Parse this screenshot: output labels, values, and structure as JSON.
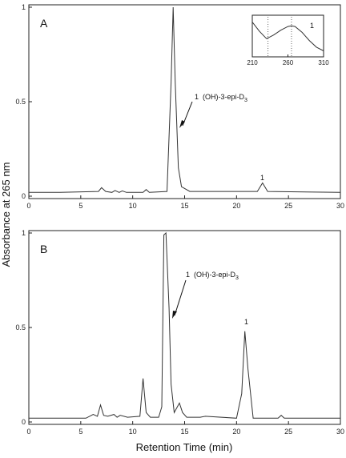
{
  "ylabel": "Absorbance at 265 nm",
  "xlabel": "Retention Time (min)",
  "colors": {
    "trace": "#333333",
    "axis": "#222222"
  },
  "chart_data": [
    {
      "panel": "A",
      "type": "line",
      "xlim": [
        0,
        30
      ],
      "ylim": [
        0,
        1
      ],
      "xticks": [
        "0",
        "5",
        "10",
        "15",
        "20",
        "25",
        "30"
      ],
      "yticks": [
        "0",
        "0.5",
        "1"
      ],
      "grid": false,
      "series": [
        {
          "x": [
            0,
            3,
            6.7,
            7.0,
            7.4,
            8,
            8.3,
            8.7,
            9.0,
            9.4,
            11,
            11.3,
            11.6,
            13.3,
            13.7,
            13.9,
            14.1,
            14.4,
            14.7,
            15.5,
            22,
            22.5,
            23,
            30
          ],
          "y": [
            0.02,
            0.02,
            0.025,
            0.045,
            0.025,
            0.02,
            0.03,
            0.02,
            0.028,
            0.02,
            0.02,
            0.035,
            0.02,
            0.025,
            0.6,
            1.0,
            0.6,
            0.15,
            0.05,
            0.025,
            0.025,
            0.07,
            0.025,
            0.02
          ]
        }
      ],
      "annotations": [
        {
          "label_prefix": "1",
          "label_main": "(OH)-3-epi-D",
          "label_sub": "3",
          "x": 14.5,
          "y": 0.35
        },
        {
          "label": "1",
          "x": 22.5,
          "y": 0.07
        }
      ],
      "inset": {
        "type": "line",
        "xlim": [
          210,
          310
        ],
        "xticks": [
          "210",
          "260",
          "310"
        ],
        "series_label": "1",
        "x": [
          210,
          220,
          230,
          240,
          250,
          260,
          265,
          270,
          280,
          290,
          300,
          310
        ],
        "y": [
          0.9,
          0.65,
          0.45,
          0.55,
          0.68,
          0.78,
          0.8,
          0.78,
          0.62,
          0.4,
          0.22,
          0.12
        ],
        "dotted_x": [
          232,
          265
        ]
      }
    },
    {
      "panel": "B",
      "type": "line",
      "xlim": [
        0,
        30
      ],
      "ylim": [
        0,
        1
      ],
      "xticks": [
        "0",
        "5",
        "10",
        "15",
        "20",
        "25",
        "30"
      ],
      "yticks": [
        "0",
        "0.5",
        "1"
      ],
      "grid": false,
      "series": [
        {
          "x": [
            0,
            5.5,
            6.2,
            6.6,
            6.9,
            7.2,
            7.6,
            8.2,
            8.5,
            8.8,
            9.5,
            10.7,
            11.0,
            11.3,
            11.7,
            12.5,
            12.8,
            13.0,
            13.2,
            13.5,
            13.7,
            14.0,
            14.5,
            14.8,
            15.2,
            16.5,
            17.0,
            20,
            20.5,
            20.8,
            21.1,
            21.6,
            24,
            24.3,
            24.6,
            30
          ],
          "y": [
            0.02,
            0.02,
            0.04,
            0.03,
            0.09,
            0.035,
            0.03,
            0.04,
            0.025,
            0.035,
            0.025,
            0.03,
            0.23,
            0.05,
            0.025,
            0.025,
            0.08,
            0.99,
            1.0,
            0.6,
            0.2,
            0.05,
            0.1,
            0.05,
            0.025,
            0.025,
            0.03,
            0.02,
            0.15,
            0.48,
            0.28,
            0.02,
            0.02,
            0.035,
            0.02,
            0.02
          ]
        }
      ],
      "annotations": [
        {
          "label_prefix": "1",
          "label_main": "(OH)-3-epi-D",
          "label_sub": "3",
          "x": 13.5,
          "y": 0.5
        },
        {
          "label": "1",
          "x": 20.8,
          "y": 0.49
        }
      ]
    }
  ]
}
